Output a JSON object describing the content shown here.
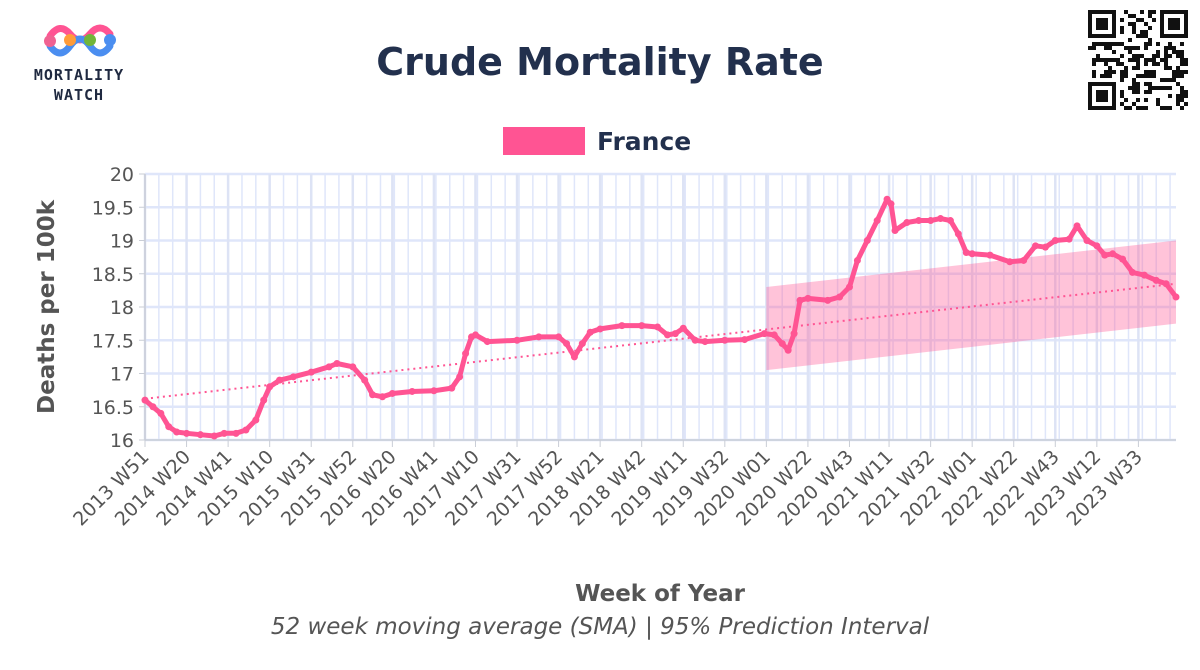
{
  "logo": {
    "line1": "MORTALITY",
    "line2": "WATCH"
  },
  "chart_data": {
    "type": "line",
    "title": "Crude Mortality Rate",
    "caption": "52 week moving average (SMA) | 95% Prediction Interval",
    "xlabel": "Week of Year",
    "ylabel": "Deaths per 100k",
    "ylim": [
      16,
      20
    ],
    "yticks": [
      "16",
      "16.5",
      "17",
      "17.5",
      "18",
      "18.5",
      "19",
      "19.5",
      "20"
    ],
    "x_start": "2013 W51",
    "x_end": "2023 W52",
    "xticks": [
      "2013 W51",
      "2014 W20",
      "2014 W41",
      "2015 W10",
      "2015 W31",
      "2015 W52",
      "2016 W20",
      "2016 W41",
      "2017 W10",
      "2017 W31",
      "2017 W52",
      "2018 W21",
      "2018 W42",
      "2019 W11",
      "2019 W32",
      "2020 W01",
      "2020 W22",
      "2020 W43",
      "2021 W11",
      "2021 W32",
      "2022 W01",
      "2022 W22",
      "2022 W43",
      "2023 W12",
      "2023 W33"
    ],
    "grid": true,
    "legend_position": "top",
    "series": [
      {
        "name": "France",
        "color": "#ff5493",
        "points": [
          {
            "x": "2013 W51",
            "y": 16.6
          },
          {
            "x": "2014 W03",
            "y": 16.5
          },
          {
            "x": "2014 W07",
            "y": 16.4
          },
          {
            "x": "2014 W11",
            "y": 16.2
          },
          {
            "x": "2014 W15",
            "y": 16.12
          },
          {
            "x": "2014 W20",
            "y": 16.1
          },
          {
            "x": "2014 W27",
            "y": 16.08
          },
          {
            "x": "2014 W34",
            "y": 16.06
          },
          {
            "x": "2014 W39",
            "y": 16.1
          },
          {
            "x": "2014 W45",
            "y": 16.1
          },
          {
            "x": "2014 W50",
            "y": 16.15
          },
          {
            "x": "2015 W03",
            "y": 16.3
          },
          {
            "x": "2015 W07",
            "y": 16.6
          },
          {
            "x": "2015 W10",
            "y": 16.8
          },
          {
            "x": "2015 W15",
            "y": 16.9
          },
          {
            "x": "2015 W22",
            "y": 16.95
          },
          {
            "x": "2015 W31",
            "y": 17.02
          },
          {
            "x": "2015 W40",
            "y": 17.1
          },
          {
            "x": "2015 W44",
            "y": 17.15
          },
          {
            "x": "2015 W52",
            "y": 17.1
          },
          {
            "x": "2016 W06",
            "y": 16.9
          },
          {
            "x": "2016 W10",
            "y": 16.68
          },
          {
            "x": "2016 W15",
            "y": 16.65
          },
          {
            "x": "2016 W20",
            "y": 16.7
          },
          {
            "x": "2016 W30",
            "y": 16.73
          },
          {
            "x": "2016 W41",
            "y": 16.74
          },
          {
            "x": "2016 W50",
            "y": 16.78
          },
          {
            "x": "2017 W02",
            "y": 16.95
          },
          {
            "x": "2017 W05",
            "y": 17.3
          },
          {
            "x": "2017 W08",
            "y": 17.55
          },
          {
            "x": "2017 W10",
            "y": 17.58
          },
          {
            "x": "2017 W16",
            "y": 17.48
          },
          {
            "x": "2017 W31",
            "y": 17.5
          },
          {
            "x": "2017 W42",
            "y": 17.55
          },
          {
            "x": "2017 W52",
            "y": 17.55
          },
          {
            "x": "2018 W04",
            "y": 17.45
          },
          {
            "x": "2018 W08",
            "y": 17.25
          },
          {
            "x": "2018 W12",
            "y": 17.45
          },
          {
            "x": "2018 W16",
            "y": 17.62
          },
          {
            "x": "2018 W21",
            "y": 17.67
          },
          {
            "x": "2018 W32",
            "y": 17.72
          },
          {
            "x": "2018 W42",
            "y": 17.72
          },
          {
            "x": "2018 W50",
            "y": 17.7
          },
          {
            "x": "2019 W03",
            "y": 17.58
          },
          {
            "x": "2019 W07",
            "y": 17.6
          },
          {
            "x": "2019 W11",
            "y": 17.68
          },
          {
            "x": "2019 W17",
            "y": 17.5
          },
          {
            "x": "2019 W22",
            "y": 17.48
          },
          {
            "x": "2019 W32",
            "y": 17.5
          },
          {
            "x": "2019 W42",
            "y": 17.51
          },
          {
            "x": "2019 W52",
            "y": 17.6
          },
          {
            "x": "2020 W05",
            "y": 17.58
          },
          {
            "x": "2020 W09",
            "y": 17.45
          },
          {
            "x": "2020 W12",
            "y": 17.35
          },
          {
            "x": "2020 W15",
            "y": 17.6
          },
          {
            "x": "2020 W18",
            "y": 18.1
          },
          {
            "x": "2020 W22",
            "y": 18.13
          },
          {
            "x": "2020 W32",
            "y": 18.1
          },
          {
            "x": "2020 W38",
            "y": 18.15
          },
          {
            "x": "2020 W43",
            "y": 18.3
          },
          {
            "x": "2020 W47",
            "y": 18.7
          },
          {
            "x": "2020 W52",
            "y": 19.0
          },
          {
            "x": "2021 W05",
            "y": 19.3
          },
          {
            "x": "2021 W10",
            "y": 19.62
          },
          {
            "x": "2021 W12",
            "y": 19.55
          },
          {
            "x": "2021 W14",
            "y": 19.15
          },
          {
            "x": "2021 W20",
            "y": 19.27
          },
          {
            "x": "2021 W26",
            "y": 19.3
          },
          {
            "x": "2021 W32",
            "y": 19.3
          },
          {
            "x": "2021 W37",
            "y": 19.33
          },
          {
            "x": "2021 W42",
            "y": 19.3
          },
          {
            "x": "2021 W46",
            "y": 19.1
          },
          {
            "x": "2021 W50",
            "y": 18.82
          },
          {
            "x": "2022 W01",
            "y": 18.8
          },
          {
            "x": "2022 W10",
            "y": 18.78
          },
          {
            "x": "2022 W20",
            "y": 18.68
          },
          {
            "x": "2022 W27",
            "y": 18.7
          },
          {
            "x": "2022 W33",
            "y": 18.92
          },
          {
            "x": "2022 W38",
            "y": 18.9
          },
          {
            "x": "2022 W43",
            "y": 19.0
          },
          {
            "x": "2022 W50",
            "y": 19.02
          },
          {
            "x": "2023 W02",
            "y": 19.22
          },
          {
            "x": "2023 W07",
            "y": 19.0
          },
          {
            "x": "2023 W12",
            "y": 18.92
          },
          {
            "x": "2023 W16",
            "y": 18.78
          },
          {
            "x": "2023 W20",
            "y": 18.8
          },
          {
            "x": "2023 W25",
            "y": 18.72
          },
          {
            "x": "2023 W30",
            "y": 18.52
          },
          {
            "x": "2023 W36",
            "y": 18.48
          },
          {
            "x": "2023 W42",
            "y": 18.4
          },
          {
            "x": "2023 W47",
            "y": 18.35
          },
          {
            "x": "2023 W52",
            "y": 18.15
          }
        ]
      }
    ],
    "trend": {
      "style": "dotted",
      "from": {
        "x": "2013 W51",
        "y": 16.62
      },
      "to": {
        "x": "2023 W52",
        "y": 18.35
      }
    },
    "prediction_interval": {
      "level": "95%",
      "from_x": "2020 W01",
      "to_x": "2023 W52",
      "lower": [
        17.05,
        17.75
      ],
      "upper": [
        18.3,
        19.0
      ]
    }
  }
}
